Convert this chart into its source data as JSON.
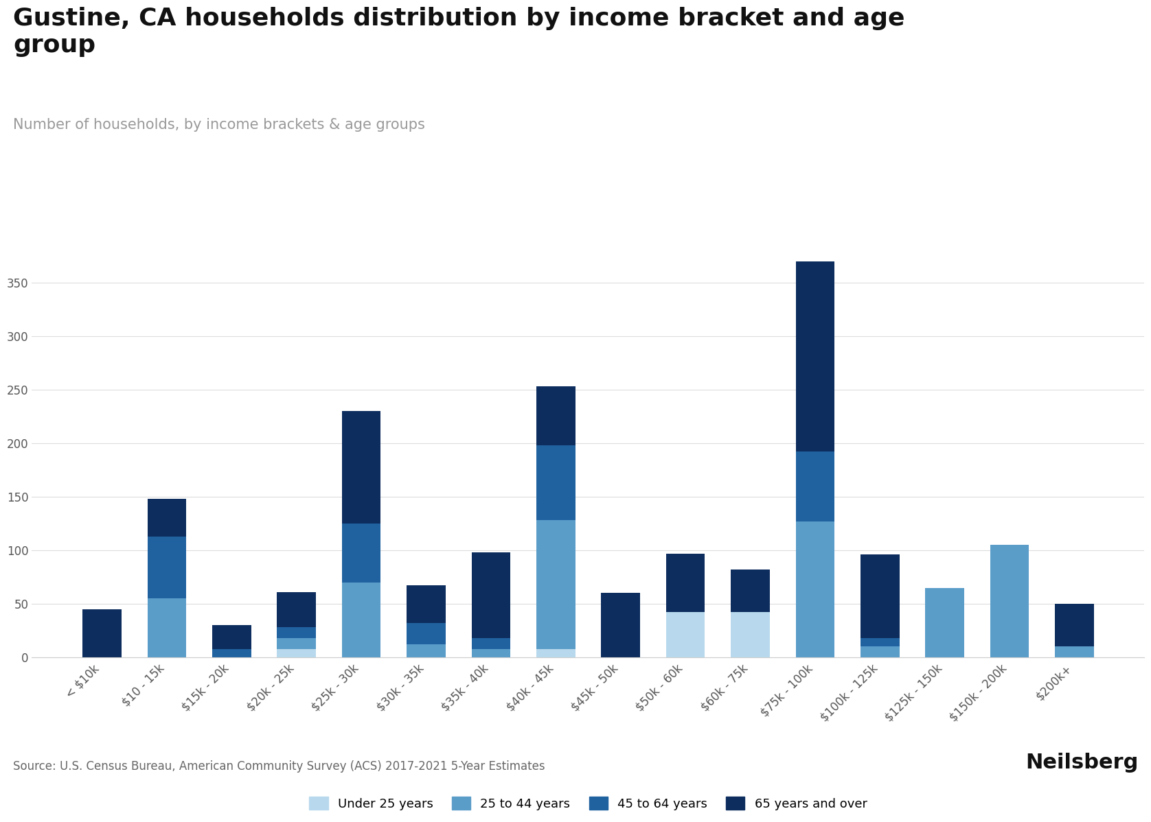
{
  "title": "Gustine, CA households distribution by income bracket and age\ngroup",
  "subtitle": "Number of households, by income brackets & age groups",
  "source": "Source: U.S. Census Bureau, American Community Survey (ACS) 2017-2021 5-Year Estimates",
  "categories": [
    "< $10k",
    "$10 - 15k",
    "$15k - 20k",
    "$20k - 25k",
    "$25k - 30k",
    "$30k - 35k",
    "$35k - 40k",
    "$40k - 45k",
    "$45k - 50k",
    "$50k - 60k",
    "$60k - 75k",
    "$75k - 100k",
    "$100k - 125k",
    "$125k - 150k",
    "$150k - 200k",
    "$200k+"
  ],
  "age_groups": [
    "Under 25 years",
    "25 to 44 years",
    "45 to 64 years",
    "65 years and over"
  ],
  "colors": [
    "#b8d9ed",
    "#5b9dc9",
    "#2062a0",
    "#0d2d5e"
  ],
  "data": {
    "Under 25 years": [
      0,
      0,
      0,
      8,
      0,
      0,
      0,
      8,
      0,
      42,
      42,
      0,
      0,
      0,
      0,
      0
    ],
    "25 to 44 years": [
      0,
      55,
      0,
      10,
      70,
      12,
      8,
      120,
      0,
      0,
      0,
      127,
      10,
      65,
      105,
      10
    ],
    "45 to 64 years": [
      0,
      58,
      8,
      10,
      55,
      20,
      10,
      70,
      0,
      0,
      0,
      65,
      8,
      0,
      0,
      0
    ],
    "65 years and over": [
      45,
      35,
      22,
      33,
      105,
      35,
      80,
      55,
      60,
      55,
      40,
      178,
      78,
      0,
      0,
      40
    ]
  },
  "ylim": [
    0,
    400
  ],
  "yticks": [
    0,
    50,
    100,
    150,
    200,
    250,
    300,
    350
  ],
  "background_color": "#ffffff",
  "title_fontsize": 26,
  "subtitle_fontsize": 15,
  "tick_fontsize": 12,
  "legend_fontsize": 13,
  "source_fontsize": 12
}
